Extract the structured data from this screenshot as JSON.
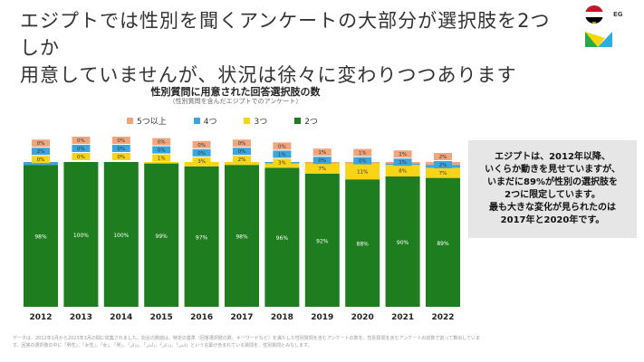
{
  "header": {
    "title_line1": "エジプトでは性別を聞くアンケートの大部分が選択肢を2つしか",
    "title_line2": "用意していませんが、状況は徐々に変わりつつあります",
    "country_code": "EG"
  },
  "callout": {
    "lines": [
      "エジプトは、2012年以降、",
      "いくらか動きを見せていますが、",
      "いまだに89%が性別の選択肢を",
      "2つに限定しています。",
      "最も大きな変化が見られたのは",
      "2017年と2020年です。"
    ]
  },
  "footnote": "データは、2012年1月から2023年3月の間に収集されました。割合の数値は、特定の基準（回答選択肢の数、キーワードなど）を満たした性別質問を含むアンケートの数を、性別質問を含むアンケートの総数で割って算出しています。回答の選択肢の中に「男性」、「女性」、「女」、「男」、「ذكر」、「أنثى」、「ذكر」、「انثى」という言葉が含まれている質問を、性別質問とみなします。",
  "chart_data": {
    "type": "bar",
    "stacked": true,
    "title": "性別質問に用意された回答選択肢の数",
    "subtitle": "（性別質問を含んだエジプトでのアンケート）",
    "categories": [
      "2012",
      "2013",
      "2014",
      "2015",
      "2016",
      "2017",
      "2018",
      "2019",
      "2020",
      "2021",
      "2022"
    ],
    "ylim": [
      0,
      100
    ],
    "grid": false,
    "legend": "top",
    "series": [
      {
        "name": "2つ",
        "color": "#1e7d1e",
        "values": [
          98,
          100,
          100,
          99,
          97,
          98,
          96,
          92,
          88,
          90,
          89
        ]
      },
      {
        "name": "3つ",
        "color": "#f7d417",
        "values": [
          0,
          0,
          0,
          1,
          3,
          2,
          3,
          7,
          11,
          8,
          7
        ]
      },
      {
        "name": "4つ",
        "color": "#3aa6dd",
        "values": [
          2,
          0,
          0,
          0,
          0,
          0,
          1,
          0,
          0,
          1,
          2
        ]
      },
      {
        "name": "5つ以上",
        "color": "#f0a57c",
        "values": [
          0,
          0,
          0,
          0,
          0,
          0,
          0,
          1,
          1,
          1,
          2
        ]
      }
    ]
  }
}
